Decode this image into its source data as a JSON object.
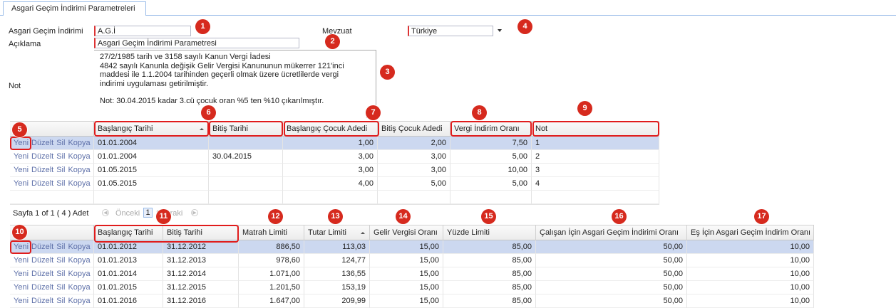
{
  "tab": "Asgari Geçim İndirimi Parametreleri",
  "form": {
    "agi_label": "Asgari Geçim İndirimi",
    "agi_value": "A.G.İ",
    "aciklama_label": "Açıklama",
    "aciklama_value": "Asgari Geçim İndirimi Parametresi",
    "mevzuat_label": "Mevzuat",
    "mevzuat_value": "Türkiye",
    "not_label": "Not",
    "not_lines": [
      "27/2/1985 tarih ve 3158 sayılı Kanun Vergi İadesi",
      "4842 sayılı Kanunla değişik Gelir Vergisi Kanununun mükerrer 121'inci",
      "maddesi ile 1.1.2004 tarihinden geçerli olmak üzere ücretlilerde vergi",
      "indirimi uygulaması getirilmiştir.",
      "Not: 30.04.2015 kadar 3.cü çocuk oran %5 ten %10 çıkarılmıştır."
    ]
  },
  "callouts": [
    "1",
    "2",
    "3",
    "4",
    "5",
    "6",
    "7",
    "8",
    "9",
    "10",
    "11",
    "12",
    "13",
    "14",
    "15",
    "16",
    "17"
  ],
  "actions": [
    "Yeni",
    "Düzelt",
    "Sil",
    "Kopya"
  ],
  "grid1": {
    "headers": [
      "Başlangıç Tarihi",
      "Bitiş Tarihi",
      "Başlangıç Çocuk Adedi",
      "Bitiş Çocuk Adedi",
      "Vergi İndirim Oranı",
      "Not"
    ],
    "rows": [
      [
        "01.01.2004",
        null,
        "1,00",
        "2,00",
        "7,50",
        "1"
      ],
      [
        "01.01.2004",
        "30.04.2015",
        "3,00",
        "3,00",
        "5,00",
        "2"
      ],
      [
        "01.05.2015",
        null,
        "3,00",
        "3,00",
        "10,00",
        "3"
      ],
      [
        "01.05.2015",
        null,
        "4,00",
        "5,00",
        "5,00",
        "4"
      ]
    ]
  },
  "pager": {
    "info": "Sayfa 1 of 1 ( 4 ) Adet",
    "prev": "Önceki",
    "page": "1",
    "next": "Sonraki"
  },
  "grid2": {
    "headers": [
      "Başlangıç Tarihi",
      "Bitiş Tarihi",
      "Matrah Limiti",
      "Tutar Limiti",
      "Gelir Vergisi Oranı",
      "Yüzde Limiti",
      "Çalışan İçin Asgari Geçim İndirimi Oranı",
      "Eş İçin Asgari Geçim İndirim Oranı"
    ],
    "rows": [
      [
        "01.01.2012",
        "31.12.2012",
        "886,50",
        "113,03",
        "15,00",
        "85,00",
        "50,00",
        "10,00"
      ],
      [
        "01.01.2013",
        "31.12.2013",
        "978,60",
        "124,77",
        "15,00",
        "85,00",
        "50,00",
        "10,00"
      ],
      [
        "01.01.2014",
        "31.12.2014",
        "1.071,00",
        "136,55",
        "15,00",
        "85,00",
        "50,00",
        "10,00"
      ],
      [
        "01.01.2015",
        "31.12.2015",
        "1.201,50",
        "153,19",
        "15,00",
        "85,00",
        "50,00",
        "10,00"
      ],
      [
        "01.01.2016",
        "31.12.2016",
        "1.647,00",
        "209,99",
        "15,00",
        "85,00",
        "50,00",
        "10,00"
      ]
    ]
  }
}
